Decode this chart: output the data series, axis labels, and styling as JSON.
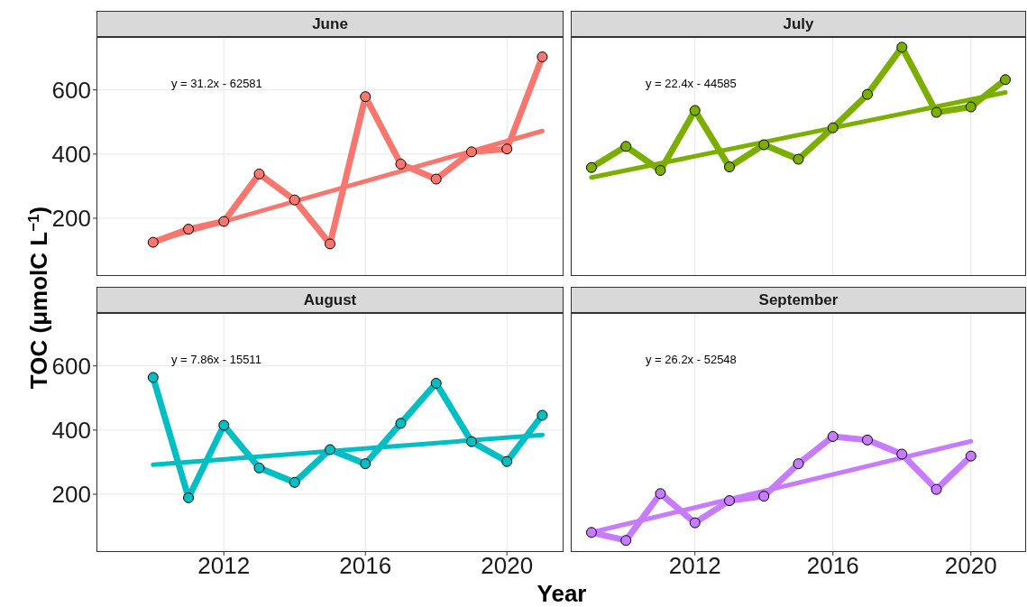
{
  "chart_data": [
    {
      "type": "line",
      "title": "June",
      "ylabel": "TOC (μmolC L$^{−1}$)",
      "xlim": [
        2008.4,
        2021.6
      ],
      "xticks": [
        2012,
        2016,
        2020
      ],
      "ylim": [
        20,
        765
      ],
      "yticks": [
        200,
        400,
        600
      ],
      "grid": true,
      "tick_labels": "y",
      "annotations": [
        "y = 31.2x - 62581"
      ],
      "series": [
        {
          "color": "#f8766d",
          "marker": "circle",
          "x": [
            2010,
            2011,
            2012,
            2013,
            2014,
            2015,
            2016,
            2017,
            2018,
            2019,
            2020,
            2021
          ],
          "values": [
            125,
            166,
            190,
            338,
            257,
            120,
            579,
            369,
            322,
            407,
            416,
            703
          ]
        },
        {
          "color": "#f8766d",
          "marker": "none",
          "x": [
            2010,
            2021
          ],
          "values": [
            127,
            472
          ]
        }
      ]
    },
    {
      "type": "line",
      "title": "July",
      "xlim": [
        2008.4,
        2021.6
      ],
      "xticks": [
        2012,
        2016,
        2020
      ],
      "ylim": [
        20,
        765
      ],
      "yticks": [
        200,
        400,
        600
      ],
      "grid": true,
      "tick_labels": false,
      "annotations": [
        "y = 22.4x - 44585"
      ],
      "series": [
        {
          "color": "#7cae00",
          "marker": "circle",
          "x": [
            2009,
            2010,
            2011,
            2012,
            2013,
            2014,
            2015,
            2016,
            2017,
            2018,
            2019,
            2020,
            2021
          ],
          "values": [
            358,
            424,
            349,
            536,
            360,
            429,
            384,
            482,
            586,
            733,
            530,
            547,
            632
          ]
        },
        {
          "color": "#7cae00",
          "marker": "none",
          "x": [
            2009,
            2021
          ],
          "values": [
            327,
            592
          ]
        }
      ]
    },
    {
      "type": "line",
      "title": "August",
      "xlabel": "Year",
      "xlim": [
        2008.4,
        2021.6
      ],
      "xticks": [
        2012,
        2016,
        2020
      ],
      "ylim": [
        20,
        765
      ],
      "yticks": [
        200,
        400,
        600
      ],
      "grid": true,
      "annotations": [
        "y = 7.86x - 15511"
      ],
      "series": [
        {
          "color": "#00bfc4",
          "marker": "circle",
          "x": [
            2010,
            2011,
            2012,
            2013,
            2014,
            2015,
            2016,
            2017,
            2018,
            2019,
            2020,
            2021
          ],
          "values": [
            564,
            189,
            415,
            282,
            237,
            339,
            295,
            421,
            546,
            364,
            302,
            446
          ]
        },
        {
          "color": "#00bfc4",
          "marker": "none",
          "x": [
            2010,
            2021
          ],
          "values": [
            292,
            385
          ]
        }
      ]
    },
    {
      "type": "line",
      "title": "September",
      "xlim": [
        2008.4,
        2021.6
      ],
      "xticks": [
        2012,
        2016,
        2020
      ],
      "ylim": [
        20,
        765
      ],
      "yticks": [
        200,
        400,
        600
      ],
      "grid": true,
      "tick_labels": "x",
      "annotations": [
        "y = 26.2x - 52548"
      ],
      "series": [
        {
          "color": "#c77cff",
          "marker": "circle",
          "x": [
            2009,
            2010,
            2011,
            2012,
            2013,
            2014,
            2015,
            2016,
            2017,
            2018,
            2019,
            2020
          ],
          "values": [
            81,
            56,
            202,
            111,
            180,
            194,
            295,
            380,
            369,
            325,
            215,
            319
          ]
        },
        {
          "color": "#c77cff",
          "marker": "none",
          "x": [
            2009,
            2020
          ],
          "values": [
            81,
            365
          ]
        }
      ]
    }
  ]
}
